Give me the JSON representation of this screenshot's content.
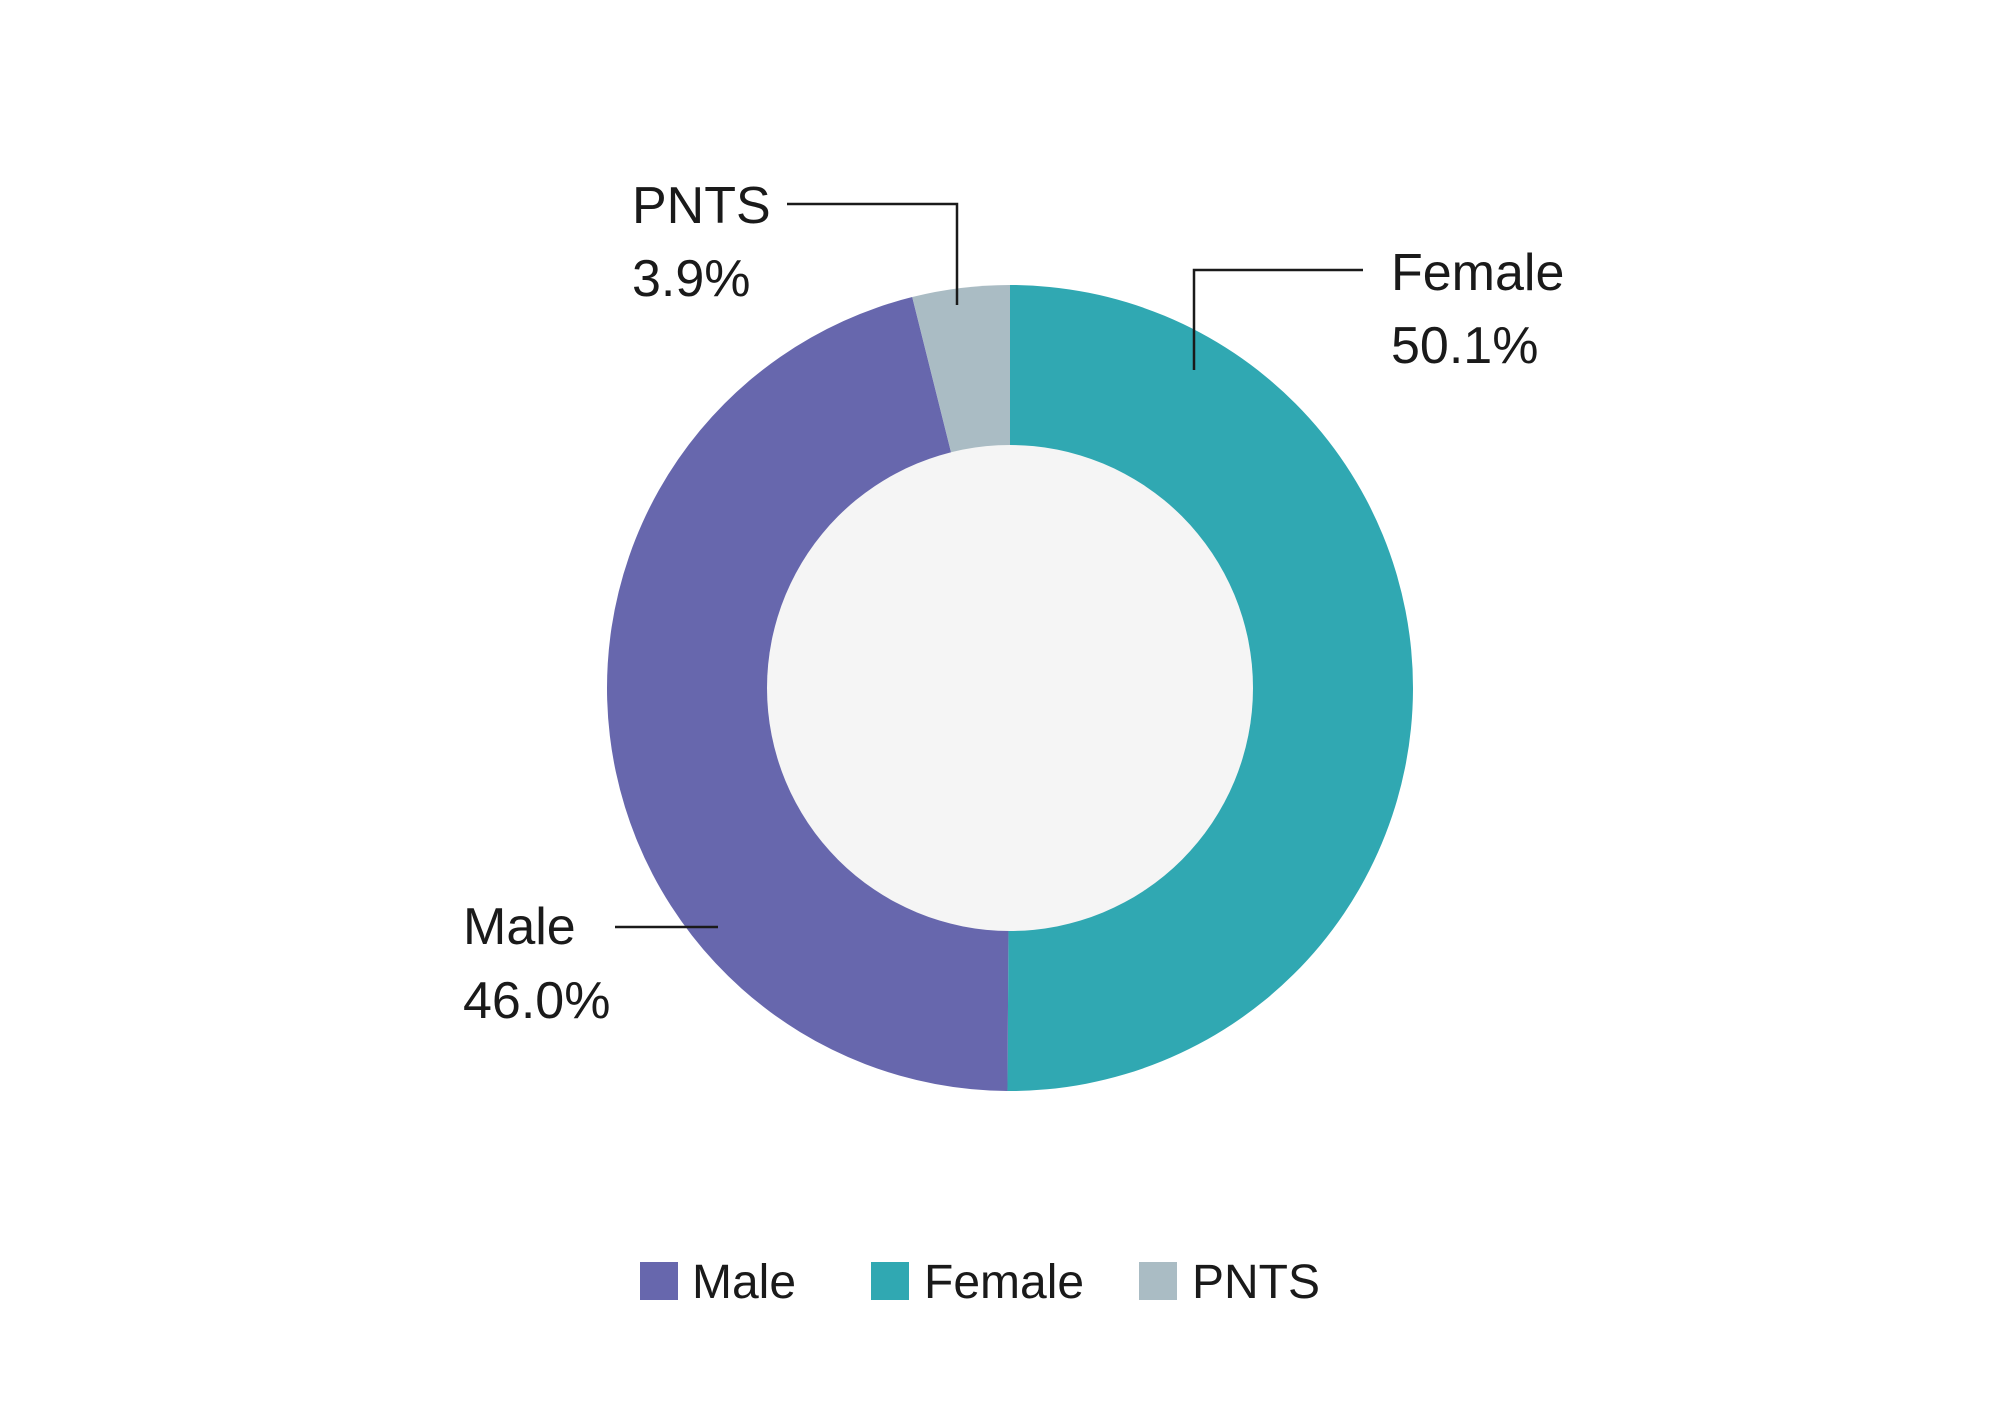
{
  "chart_data": {
    "type": "pie",
    "donut": true,
    "title": "",
    "categories": [
      "Male",
      "Female",
      "PNTS"
    ],
    "values": [
      46.0,
      50.1,
      3.9
    ],
    "value_labels": [
      "46.0%",
      "50.1%",
      "3.9%"
    ],
    "colors": [
      "#6767ad",
      "#30a8b2",
      "#aabcc4"
    ],
    "center_color": "#f5f5f5",
    "legend": {
      "placement": "bottom",
      "entries": [
        "Male",
        "Female",
        "PNTS"
      ]
    }
  }
}
